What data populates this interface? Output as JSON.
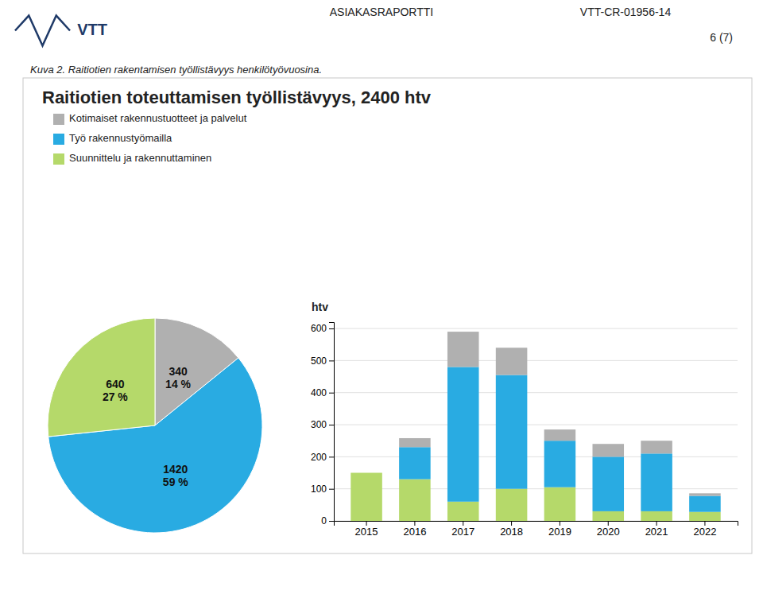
{
  "title": "Raitiotien toteuttamisen työllistävyys, 2400 htv",
  "annotations": [
    "ASIAKASRAPORTTI",
    "VTT-CR-01956-14",
    "6 (7)",
    "Kuva 2. Raitiotien rakentamisen työllistävyys henkilötyövuosina.",
    "VTT"
  ],
  "chart_data": [
    {
      "type": "pie",
      "values": [
        340,
        1420,
        640
      ],
      "share_labels": [
        "14 %",
        "59 %",
        "27 %"
      ],
      "colors": [
        "#b0b0b0",
        "#29abe2",
        "#b5d96a"
      ],
      "data_labels": true
    },
    {
      "type": "bar",
      "stacked": true,
      "categories": [
        "2015",
        "2016",
        "2017",
        "2018",
        "2019",
        "2020",
        "2021",
        "2022"
      ],
      "series": [
        {
          "name": "Suunnittelu ja rakennuttaminen",
          "color": "#b5d96a",
          "values": [
            150,
            130,
            60,
            100,
            105,
            30,
            30,
            28
          ]
        },
        {
          "name": "Työ rakennustyömailla",
          "color": "#29abe2",
          "values": [
            0,
            100,
            420,
            355,
            145,
            170,
            180,
            50
          ]
        },
        {
          "name": "Kotimaiset rakennustuotteet ja palvelut",
          "color": "#b0b0b0",
          "values": [
            0,
            28,
            110,
            85,
            35,
            40,
            40,
            8
          ]
        }
      ],
      "ylabel": "htv",
      "ylim": [
        0,
        620
      ],
      "yticks": [
        0,
        100,
        200,
        300,
        400,
        500,
        600
      ],
      "grid": true,
      "legend": "upper left"
    }
  ]
}
